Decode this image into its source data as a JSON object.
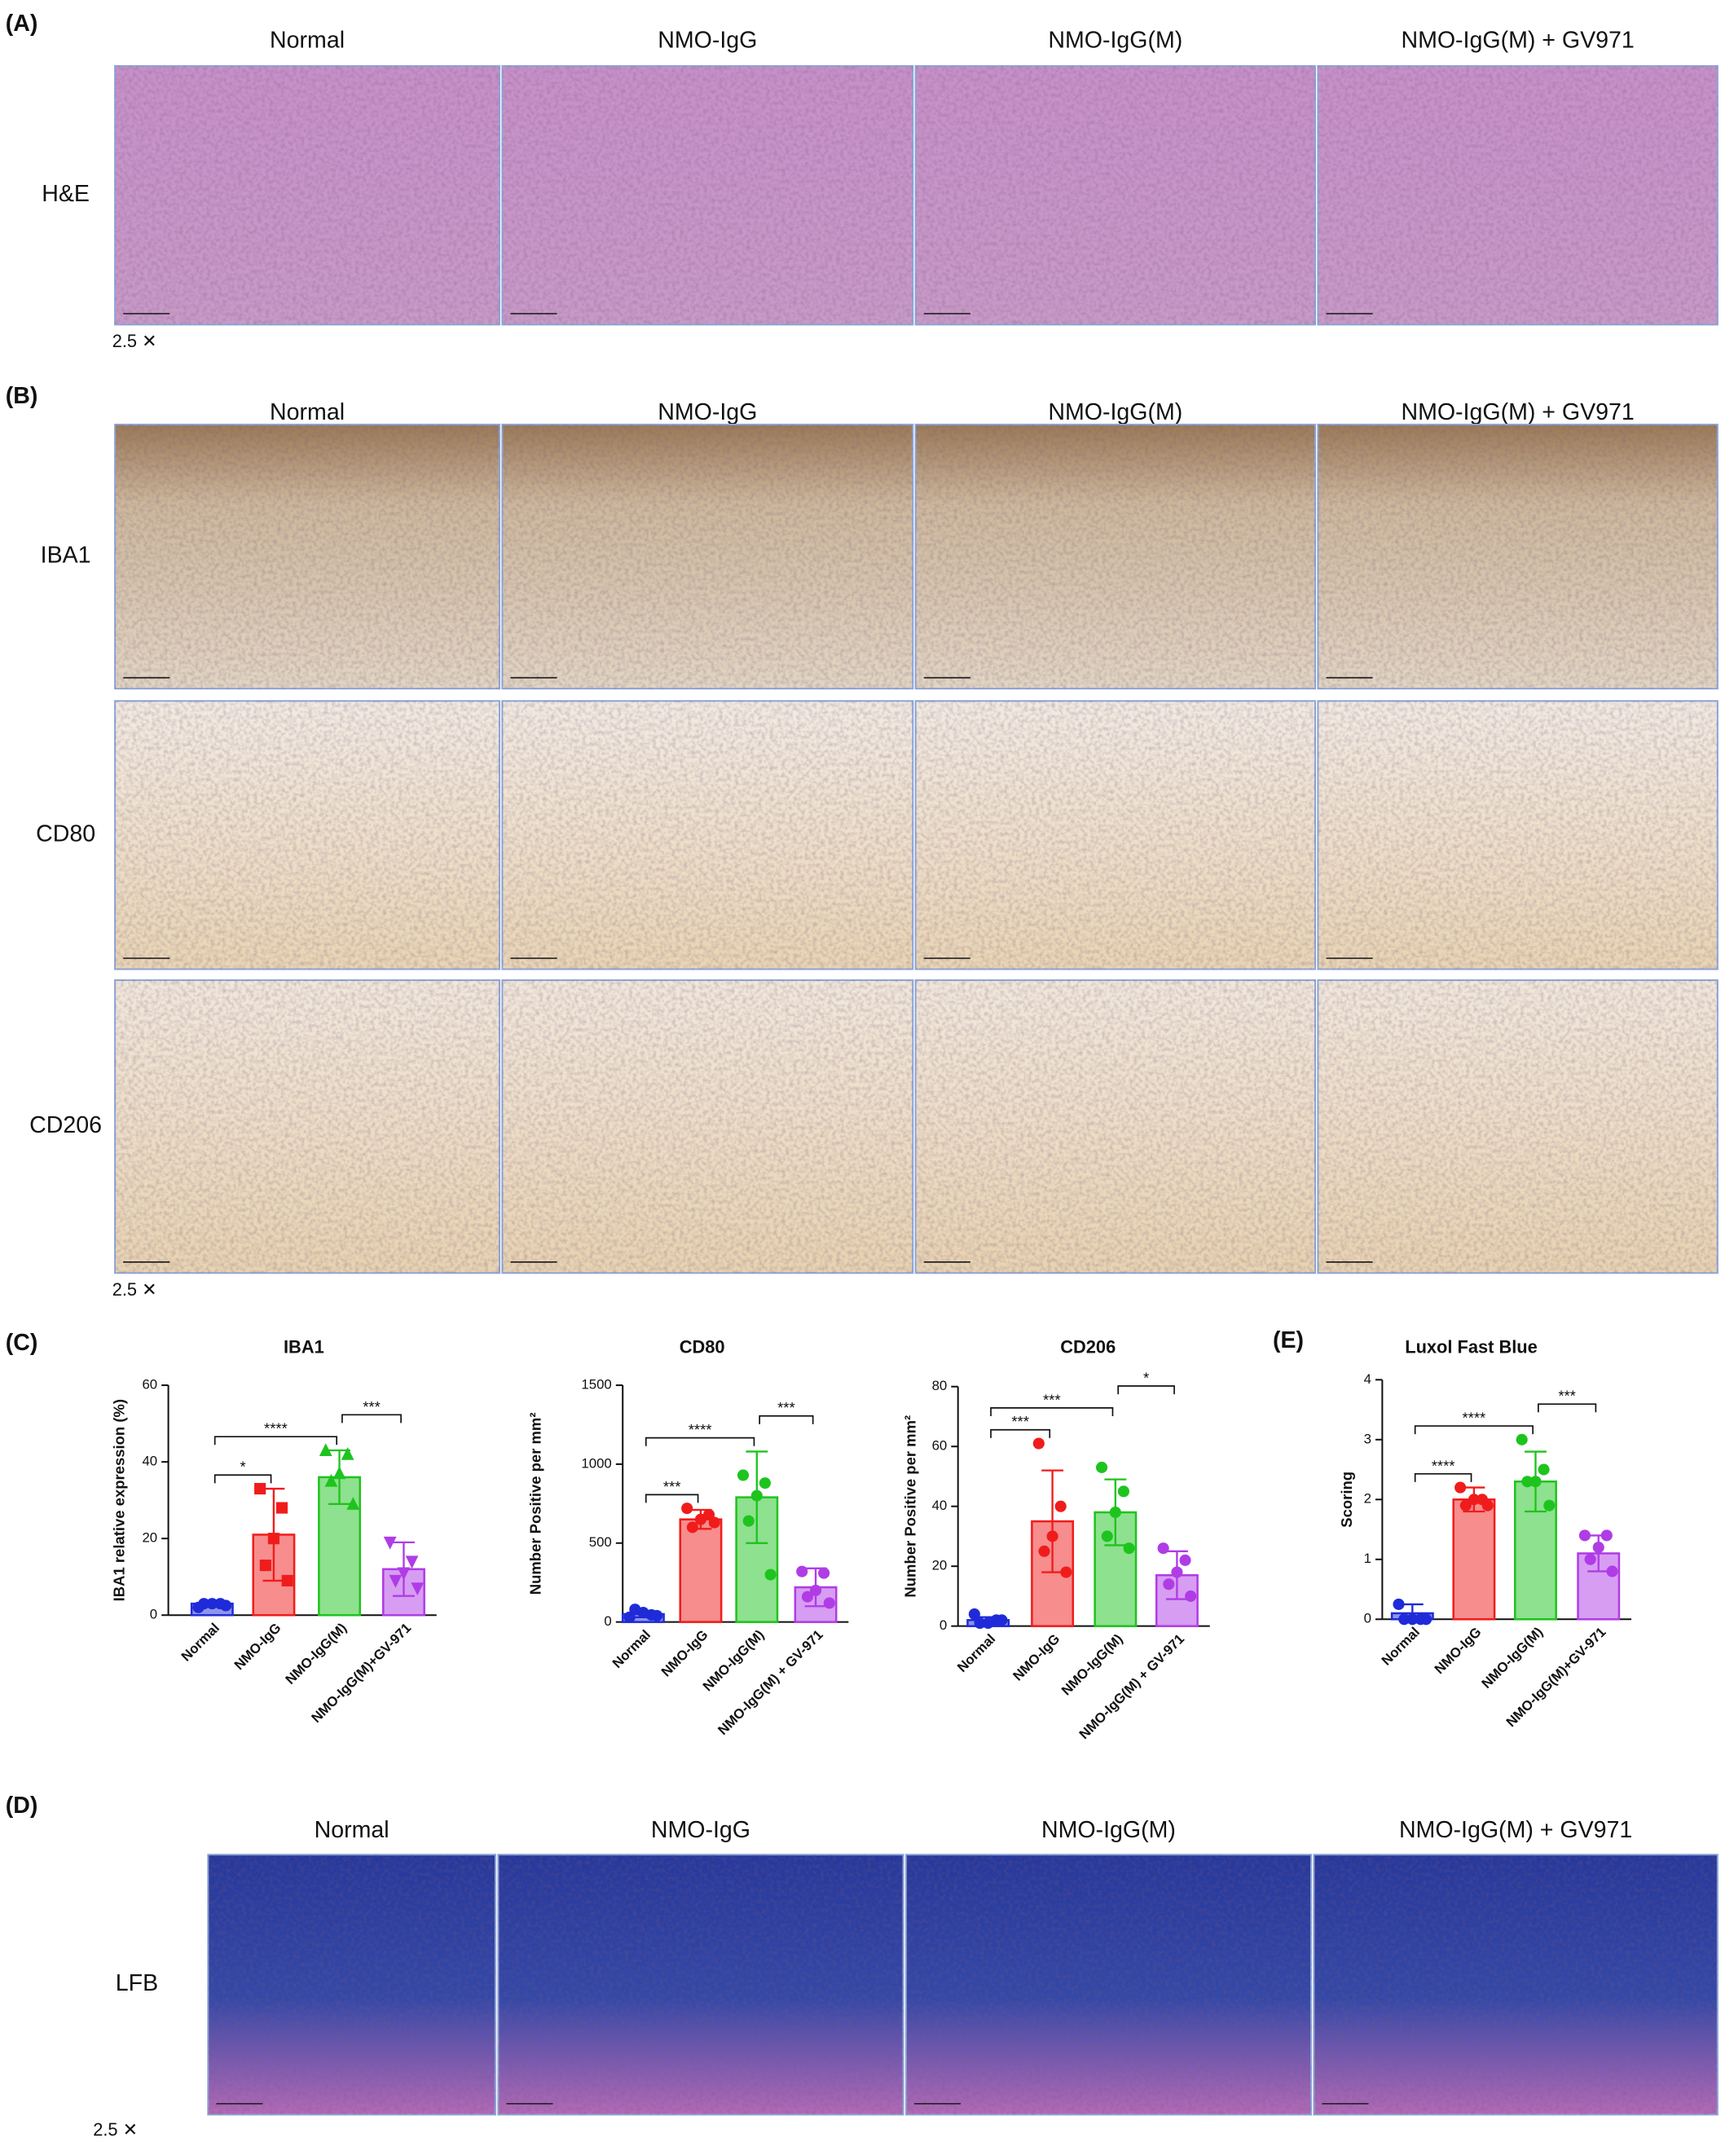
{
  "figure": {
    "panel_a": {
      "label": "(A)",
      "columns": [
        "Normal",
        "NMO-IgG",
        "NMO-IgG(M)",
        "NMO-IgG(M) + GV971"
      ],
      "rows": [
        "H&E"
      ],
      "magnification": "2.5 ✕"
    },
    "panel_b": {
      "label": "(B)",
      "columns": [
        "Normal",
        "NMO-IgG",
        "NMO-IgG(M)",
        "NMO-IgG(M) + GV971"
      ],
      "rows": [
        "IBA1",
        "CD80",
        "CD206"
      ],
      "magnification": "2.5 ✕"
    },
    "panel_c": {
      "label": "(C)"
    },
    "panel_e": {
      "label": "(E)"
    },
    "panel_d": {
      "label": "(D)",
      "columns": [
        "Normal",
        "NMO-IgG",
        "NMO-IgG(M)",
        "NMO-IgG(M) + GV971"
      ],
      "rows": [
        "LFB"
      ],
      "magnification": "2.5 ✕"
    }
  },
  "chart_data": [
    {
      "type": "bar",
      "title": "IBA1",
      "y_label": "IBA1 relative expression (%)",
      "categories": [
        "Normal",
        "NMO-IgG",
        "NMO-IgG(M)",
        "NMO-IgG(M)+GV-971"
      ],
      "values": [
        3,
        21,
        36,
        12
      ],
      "errors": [
        0.5,
        12,
        7,
        7
      ],
      "points": [
        [
          2,
          3,
          3,
          3,
          2.5
        ],
        [
          33,
          28,
          20,
          13,
          9
        ],
        [
          43,
          42,
          37,
          35,
          29
        ],
        [
          19,
          14,
          11,
          9,
          7
        ]
      ],
      "colors": [
        "#1f2bd8",
        "#f01c1c",
        "#1ec41e",
        "#b03ce6"
      ],
      "markers": [
        "circle",
        "square",
        "triangle",
        "triangle-down"
      ],
      "ylim": [
        0,
        60
      ],
      "yticks": [
        0,
        20,
        40,
        60
      ],
      "significance": [
        {
          "from": 0,
          "to": 1,
          "label": "*"
        },
        {
          "from": 0,
          "to": 2,
          "label": "****"
        },
        {
          "from": 2,
          "to": 3,
          "label": "***"
        }
      ]
    },
    {
      "type": "bar",
      "title": "CD80",
      "y_label": "Number Positive per mm²",
      "categories": [
        "Normal",
        "NMO-IgG",
        "NMO-IgG(M)",
        "NMO-IgG(M) + GV-971"
      ],
      "values": [
        50,
        650,
        790,
        220
      ],
      "errors": [
        20,
        60,
        290,
        120
      ],
      "points": [
        [
          30,
          45,
          60,
          80,
          40
        ],
        [
          720,
          680,
          650,
          600,
          630
        ],
        [
          930,
          880,
          800,
          640,
          300
        ],
        [
          320,
          310,
          200,
          160,
          120
        ]
      ],
      "colors": [
        "#1f2bd8",
        "#f01c1c",
        "#1ec41e",
        "#b03ce6"
      ],
      "markers": [
        "circle",
        "circle",
        "circle",
        "circle"
      ],
      "ylim": [
        0,
        1500
      ],
      "yticks": [
        0,
        500,
        1000,
        1500
      ],
      "significance": [
        {
          "from": 0,
          "to": 1,
          "label": "***"
        },
        {
          "from": 0,
          "to": 2,
          "label": "****"
        },
        {
          "from": 2,
          "to": 3,
          "label": "***"
        }
      ]
    },
    {
      "type": "bar",
      "title": "CD206",
      "y_label": "Number Positive per mm²",
      "categories": [
        "Normal",
        "NMO-IgG",
        "NMO-IgG(M)",
        "NMO-IgG(M) + GV-971"
      ],
      "values": [
        2,
        35,
        38,
        17
      ],
      "errors": [
        1,
        17,
        11,
        8
      ],
      "points": [
        [
          4,
          2,
          1,
          1,
          2
        ],
        [
          61,
          40,
          30,
          25,
          18
        ],
        [
          53,
          45,
          38,
          30,
          26
        ],
        [
          26,
          22,
          18,
          14,
          10
        ]
      ],
      "colors": [
        "#1f2bd8",
        "#f01c1c",
        "#1ec41e",
        "#b03ce6"
      ],
      "markers": [
        "circle",
        "circle",
        "circle",
        "circle"
      ],
      "ylim": [
        0,
        80
      ],
      "yticks": [
        0,
        20,
        40,
        60,
        80
      ],
      "significance": [
        {
          "from": 0,
          "to": 1,
          "label": "***"
        },
        {
          "from": 0,
          "to": 2,
          "label": "***"
        },
        {
          "from": 2,
          "to": 3,
          "label": "*"
        }
      ]
    },
    {
      "type": "bar",
      "title": "Luxol Fast Blue",
      "y_label": "Scoring",
      "categories": [
        "Normal",
        "NMO-IgG",
        "NMO-IgG(M)",
        "NMO-IgG(M)+GV-971"
      ],
      "values": [
        0.1,
        2,
        2.3,
        1.1
      ],
      "errors": [
        0.15,
        0.2,
        0.5,
        0.3
      ],
      "points": [
        [
          0.25,
          0,
          0,
          0,
          0
        ],
        [
          2.2,
          2,
          2,
          1.9,
          1.9
        ],
        [
          3,
          2.5,
          2.3,
          2.3,
          1.9
        ],
        [
          1.4,
          1.4,
          1.2,
          1,
          0.8
        ]
      ],
      "colors": [
        "#1f2bd8",
        "#f01c1c",
        "#1ec41e",
        "#b03ce6"
      ],
      "markers": [
        "circle",
        "circle",
        "circle",
        "circle"
      ],
      "ylim": [
        0,
        4
      ],
      "yticks": [
        0,
        1,
        2,
        3,
        4
      ],
      "significance": [
        {
          "from": 0,
          "to": 1,
          "label": "****"
        },
        {
          "from": 0,
          "to": 2,
          "label": "****"
        },
        {
          "from": 2,
          "to": 3,
          "label": "***"
        }
      ]
    }
  ]
}
